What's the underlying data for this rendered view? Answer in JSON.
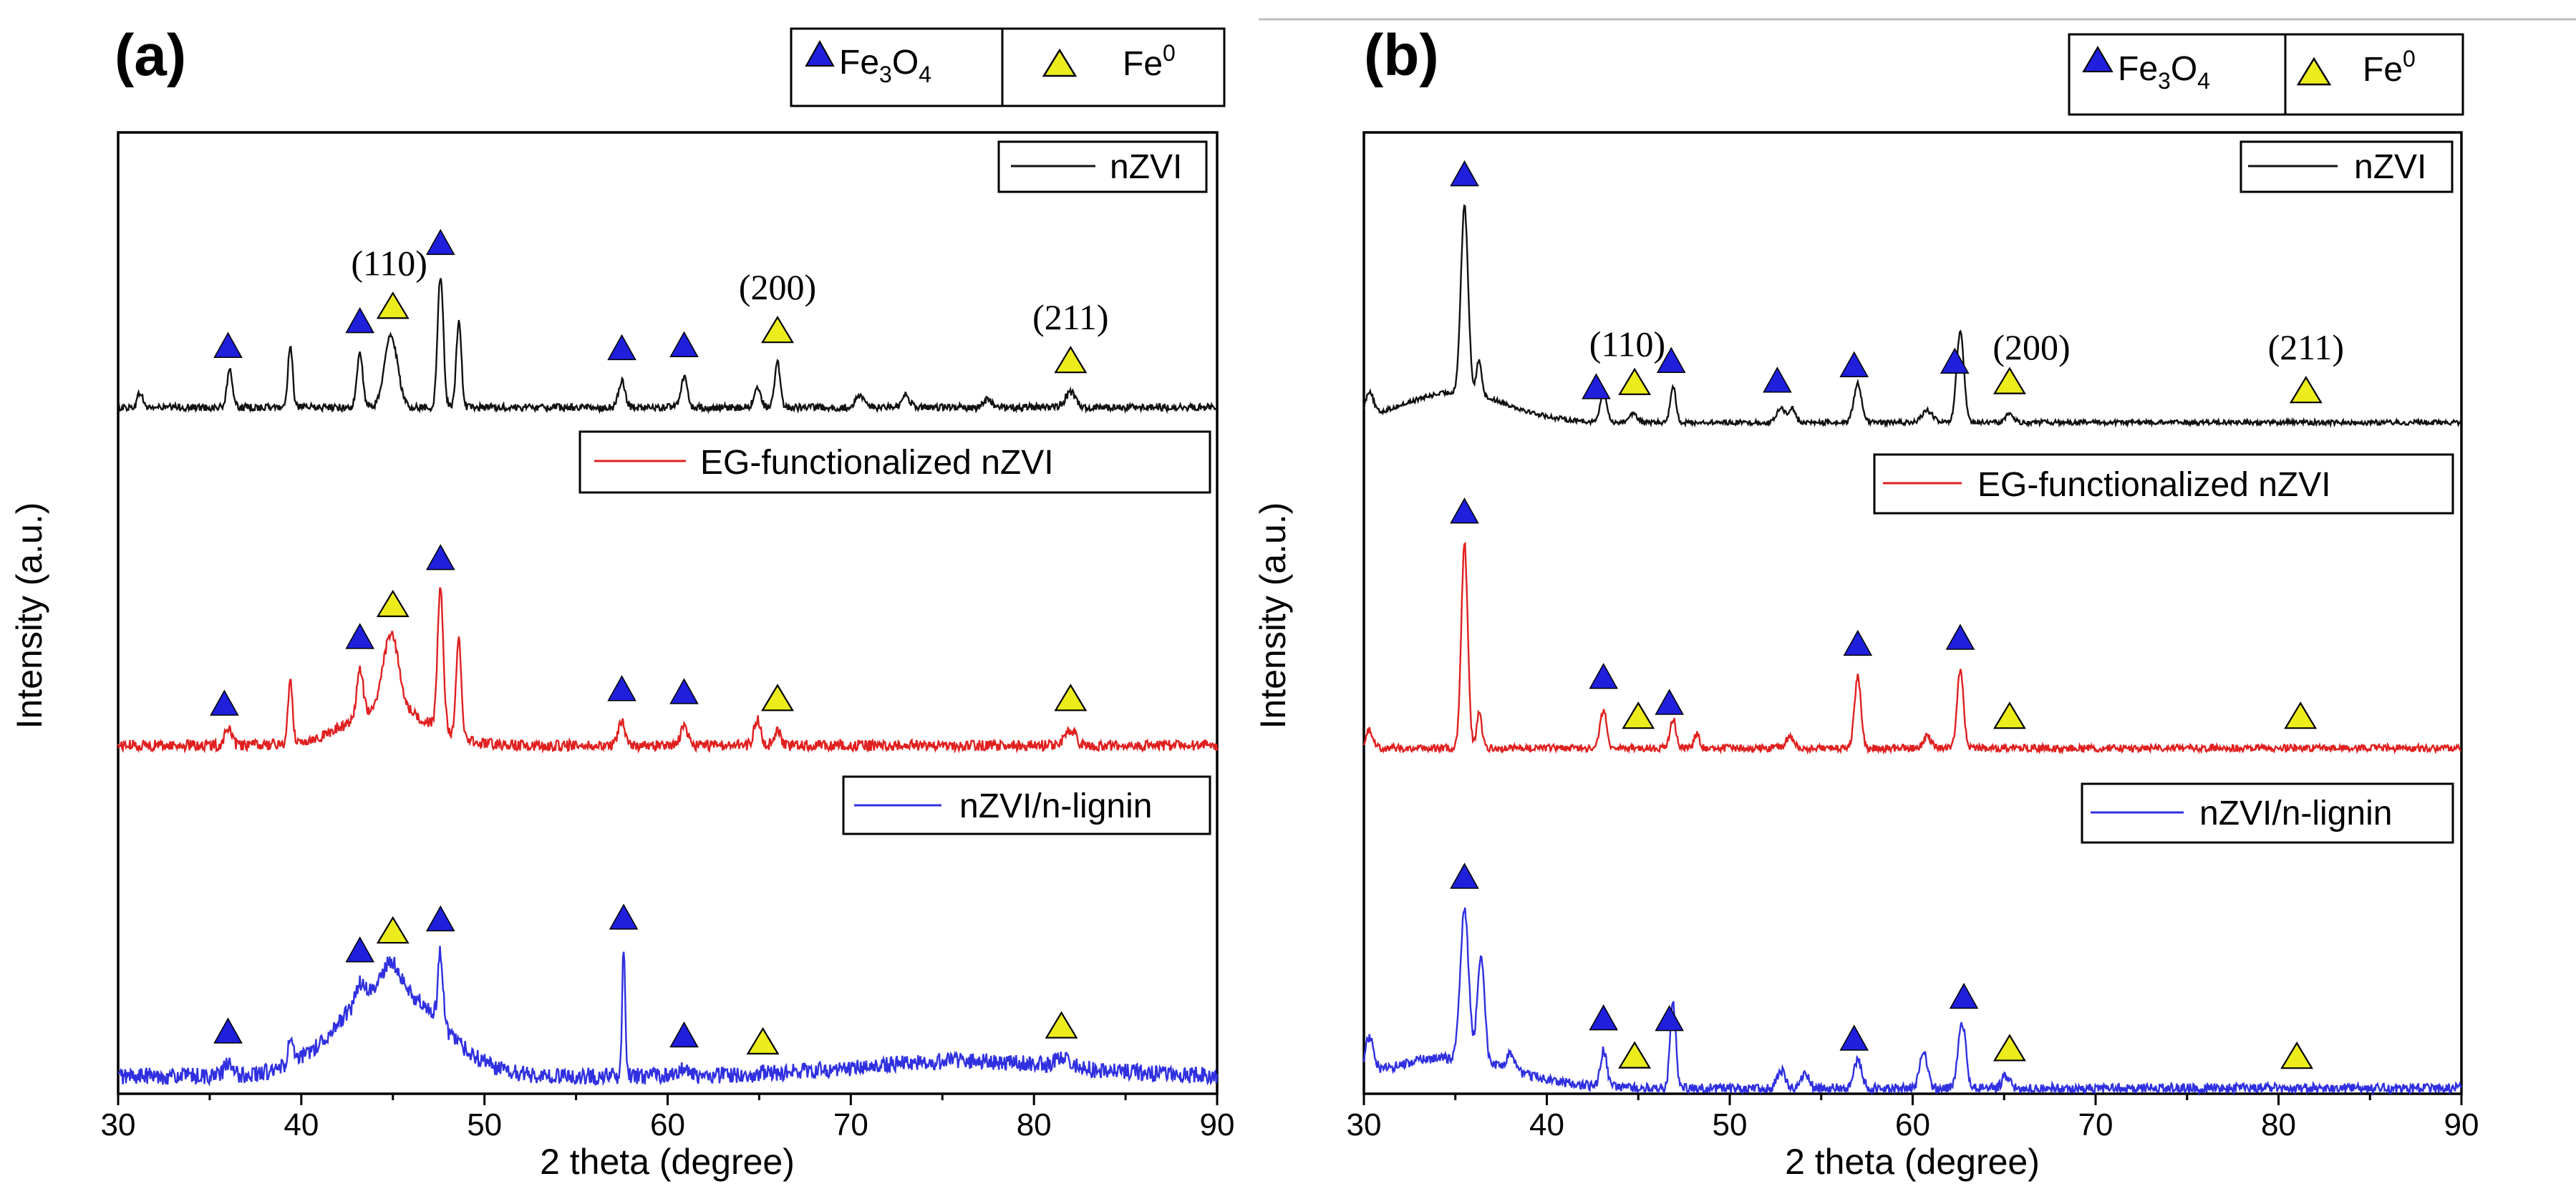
{
  "figure": {
    "marker_labels": {
      "fe3o4": {
        "main": "Fe",
        "sub1": "3",
        "mid": "O",
        "sub2": "4"
      },
      "fe0": {
        "main": "Fe",
        "sup": "0"
      }
    },
    "colors": {
      "fe3o4_marker": "#1f1fdc",
      "fe0_marker": "#ecec1c",
      "nZVI": "#111111",
      "EG-functionalized nZVI": "#e02020",
      "nZVI/n-lignin": "#3030e0"
    }
  },
  "chart_data": [
    {
      "panel_label": "(a)",
      "type": "line",
      "xlabel": "2 theta (degree)",
      "ylabel": "Intensity (a.u.)",
      "xlim": [
        30,
        90
      ],
      "xticks": [
        30,
        40,
        50,
        60,
        70,
        80,
        90
      ],
      "series": [
        {
          "name": "nZVI",
          "baseline": 0.24,
          "noise": 0.012,
          "peaks": [
            {
              "x": 31.2,
              "h": 0.05,
              "w": 0.2
            },
            {
              "x": 36.1,
              "h": 0.12,
              "w": 0.22
            },
            {
              "x": 39.4,
              "h": 0.21,
              "w": 0.18
            },
            {
              "x": 43.2,
              "h": 0.18,
              "w": 0.22
            },
            {
              "x": 44.9,
              "h": 0.24,
              "w": 0.5
            },
            {
              "x": 47.6,
              "h": 0.44,
              "w": 0.22
            },
            {
              "x": 48.6,
              "h": 0.28,
              "w": 0.2
            },
            {
              "x": 57.5,
              "h": 0.09,
              "w": 0.25
            },
            {
              "x": 60.9,
              "h": 0.1,
              "w": 0.25
            },
            {
              "x": 64.9,
              "h": 0.07,
              "w": 0.25
            },
            {
              "x": 66.0,
              "h": 0.15,
              "w": 0.22
            },
            {
              "x": 70.5,
              "h": 0.04,
              "w": 0.3
            },
            {
              "x": 73.0,
              "h": 0.04,
              "w": 0.3
            },
            {
              "x": 77.5,
              "h": 0.03,
              "w": 0.3
            },
            {
              "x": 82.0,
              "h": 0.05,
              "w": 0.4
            }
          ],
          "humps": []
        },
        {
          "name": "EG-functionalized nZVI",
          "baseline": 0.235,
          "noise": 0.018,
          "peaks": [
            {
              "x": 36.0,
              "h": 0.06,
              "w": 0.25
            },
            {
              "x": 39.4,
              "h": 0.2,
              "w": 0.18
            },
            {
              "x": 43.2,
              "h": 0.16,
              "w": 0.25
            },
            {
              "x": 44.9,
              "h": 0.25,
              "w": 0.6
            },
            {
              "x": 47.6,
              "h": 0.46,
              "w": 0.22
            },
            {
              "x": 48.6,
              "h": 0.32,
              "w": 0.2
            },
            {
              "x": 57.5,
              "h": 0.08,
              "w": 0.25
            },
            {
              "x": 60.9,
              "h": 0.07,
              "w": 0.25
            },
            {
              "x": 64.9,
              "h": 0.09,
              "w": 0.25
            },
            {
              "x": 66.0,
              "h": 0.05,
              "w": 0.25
            },
            {
              "x": 82.0,
              "h": 0.05,
              "w": 0.4
            }
          ],
          "humps": [
            {
              "x": 44.8,
              "h": 0.12,
              "w": 3.2
            }
          ]
        },
        {
          "name": "nZVI/n-lignin",
          "baseline": 0.23,
          "noise": 0.028,
          "peaks": [
            {
              "x": 36.0,
              "h": 0.04,
              "w": 0.3
            },
            {
              "x": 39.4,
              "h": 0.08,
              "w": 0.2
            },
            {
              "x": 43.2,
              "h": 0.06,
              "w": 0.3
            },
            {
              "x": 44.9,
              "h": 0.08,
              "w": 0.6
            },
            {
              "x": 47.6,
              "h": 0.24,
              "w": 0.2
            },
            {
              "x": 57.6,
              "h": 0.42,
              "w": 0.12
            },
            {
              "x": 61.0,
              "h": 0.03,
              "w": 0.3
            },
            {
              "x": 81.5,
              "h": 0.03,
              "w": 0.6
            }
          ],
          "humps": [
            {
              "x": 44.8,
              "h": 0.3,
              "w": 3.8
            },
            {
              "x": 76.0,
              "h": 0.05,
              "w": 8.0
            }
          ]
        }
      ],
      "markers": [
        {
          "series": 0,
          "type": "Fe3O4",
          "x": 36.0
        },
        {
          "series": 0,
          "type": "Fe3O4",
          "x": 43.2
        },
        {
          "series": 0,
          "type": "Fe0",
          "x": 45.0
        },
        {
          "series": 0,
          "type": "Fe3O4",
          "x": 47.6
        },
        {
          "series": 0,
          "type": "Fe3O4",
          "x": 57.5
        },
        {
          "series": 0,
          "type": "Fe3O4",
          "x": 60.9
        },
        {
          "series": 0,
          "type": "Fe0",
          "x": 66.0
        },
        {
          "series": 0,
          "type": "Fe0",
          "x": 82.0
        },
        {
          "series": 1,
          "type": "Fe3O4",
          "x": 35.8
        },
        {
          "series": 1,
          "type": "Fe3O4",
          "x": 43.2
        },
        {
          "series": 1,
          "type": "Fe0",
          "x": 45.0
        },
        {
          "series": 1,
          "type": "Fe3O4",
          "x": 47.6
        },
        {
          "series": 1,
          "type": "Fe3O4",
          "x": 57.5
        },
        {
          "series": 1,
          "type": "Fe3O4",
          "x": 60.9
        },
        {
          "series": 1,
          "type": "Fe0",
          "x": 66.0
        },
        {
          "series": 1,
          "type": "Fe0",
          "x": 82.0
        },
        {
          "series": 2,
          "type": "Fe3O4",
          "x": 36.0
        },
        {
          "series": 2,
          "type": "Fe3O4",
          "x": 43.2
        },
        {
          "series": 2,
          "type": "Fe0",
          "x": 45.0
        },
        {
          "series": 2,
          "type": "Fe3O4",
          "x": 47.6
        },
        {
          "series": 2,
          "type": "Fe3O4",
          "x": 57.6
        },
        {
          "series": 2,
          "type": "Fe3O4",
          "x": 60.9
        },
        {
          "series": 2,
          "type": "Fe0",
          "x": 65.2
        },
        {
          "series": 2,
          "type": "Fe0",
          "x": 81.5
        }
      ],
      "annotations": [
        {
          "text": "(110)",
          "x": 44.8,
          "series": 0
        },
        {
          "text": "(200)",
          "x": 66.0,
          "series": 0
        },
        {
          "text": "(211)",
          "x": 82.0,
          "series": 0
        }
      ]
    },
    {
      "panel_label": "(b)",
      "type": "line",
      "xlabel": "2 theta (degree)",
      "ylabel": "Intensity (a.u.)",
      "xlim": [
        30,
        90
      ],
      "xticks": [
        30,
        40,
        50,
        60,
        70,
        80,
        90
      ],
      "series": [
        {
          "name": "nZVI",
          "baseline": 0.19,
          "noise": 0.008,
          "peaks": [
            {
              "x": 30.3,
              "h": 0.08,
              "w": 0.3
            },
            {
              "x": 35.5,
              "h": 0.62,
              "w": 0.28
            },
            {
              "x": 36.3,
              "h": 0.12,
              "w": 0.2
            },
            {
              "x": 43.1,
              "h": 0.1,
              "w": 0.25
            },
            {
              "x": 44.7,
              "h": 0.03,
              "w": 0.3
            },
            {
              "x": 46.9,
              "h": 0.12,
              "w": 0.22
            },
            {
              "x": 52.8,
              "h": 0.05,
              "w": 0.3
            },
            {
              "x": 53.4,
              "h": 0.05,
              "w": 0.25
            },
            {
              "x": 57.0,
              "h": 0.13,
              "w": 0.3
            },
            {
              "x": 60.8,
              "h": 0.04,
              "w": 0.4
            },
            {
              "x": 62.6,
              "h": 0.3,
              "w": 0.28
            },
            {
              "x": 65.3,
              "h": 0.03,
              "w": 0.3
            }
          ],
          "humps": [
            {
              "x": 35.0,
              "h": 0.1,
              "w": 4.0
            }
          ]
        },
        {
          "name": "EG-functionalized nZVI",
          "baseline": 0.19,
          "noise": 0.012,
          "peaks": [
            {
              "x": 30.3,
              "h": 0.06,
              "w": 0.3
            },
            {
              "x": 35.5,
              "h": 0.68,
              "w": 0.25
            },
            {
              "x": 36.3,
              "h": 0.12,
              "w": 0.2
            },
            {
              "x": 43.1,
              "h": 0.13,
              "w": 0.25
            },
            {
              "x": 46.9,
              "h": 0.1,
              "w": 0.22
            },
            {
              "x": 48.2,
              "h": 0.05,
              "w": 0.2
            },
            {
              "x": 53.3,
              "h": 0.04,
              "w": 0.3
            },
            {
              "x": 57.0,
              "h": 0.24,
              "w": 0.25
            },
            {
              "x": 60.8,
              "h": 0.04,
              "w": 0.3
            },
            {
              "x": 62.6,
              "h": 0.26,
              "w": 0.25
            }
          ],
          "humps": []
        },
        {
          "name": "nZVI/n-lignin",
          "baseline": 0.19,
          "noise": 0.016,
          "peaks": [
            {
              "x": 30.3,
              "h": 0.12,
              "w": 0.35
            },
            {
              "x": 35.5,
              "h": 0.5,
              "w": 0.32
            },
            {
              "x": 36.4,
              "h": 0.36,
              "w": 0.28
            },
            {
              "x": 38.0,
              "h": 0.05,
              "w": 0.3
            },
            {
              "x": 43.1,
              "h": 0.12,
              "w": 0.25
            },
            {
              "x": 46.9,
              "h": 0.28,
              "w": 0.22
            },
            {
              "x": 52.8,
              "h": 0.06,
              "w": 0.3
            },
            {
              "x": 54.1,
              "h": 0.05,
              "w": 0.3
            },
            {
              "x": 57.0,
              "h": 0.09,
              "w": 0.3
            },
            {
              "x": 60.6,
              "h": 0.12,
              "w": 0.3
            },
            {
              "x": 62.7,
              "h": 0.22,
              "w": 0.3
            },
            {
              "x": 65.1,
              "h": 0.04,
              "w": 0.3
            }
          ],
          "humps": [
            {
              "x": 34.5,
              "h": 0.1,
              "w": 5.0
            }
          ]
        }
      ],
      "markers": [
        {
          "series": 0,
          "type": "Fe3O4",
          "x": 35.5
        },
        {
          "series": 0,
          "type": "Fe3O4",
          "x": 42.7
        },
        {
          "series": 0,
          "type": "Fe0",
          "x": 44.8
        },
        {
          "series": 0,
          "type": "Fe3O4",
          "x": 46.8
        },
        {
          "series": 0,
          "type": "Fe3O4",
          "x": 52.6
        },
        {
          "series": 0,
          "type": "Fe3O4",
          "x": 56.8
        },
        {
          "series": 0,
          "type": "Fe3O4",
          "x": 62.3
        },
        {
          "series": 0,
          "type": "Fe0",
          "x": 65.3
        },
        {
          "series": 0,
          "type": "Fe0",
          "x": 81.5
        },
        {
          "series": 1,
          "type": "Fe3O4",
          "x": 35.5
        },
        {
          "series": 1,
          "type": "Fe3O4",
          "x": 43.1
        },
        {
          "series": 1,
          "type": "Fe0",
          "x": 45.0
        },
        {
          "series": 1,
          "type": "Fe3O4",
          "x": 46.7
        },
        {
          "series": 1,
          "type": "Fe3O4",
          "x": 57.0
        },
        {
          "series": 1,
          "type": "Fe3O4",
          "x": 62.6
        },
        {
          "series": 1,
          "type": "Fe0",
          "x": 65.3
        },
        {
          "series": 1,
          "type": "Fe0",
          "x": 81.2
        },
        {
          "series": 2,
          "type": "Fe3O4",
          "x": 35.5
        },
        {
          "series": 2,
          "type": "Fe3O4",
          "x": 43.1
        },
        {
          "series": 2,
          "type": "Fe0",
          "x": 44.8
        },
        {
          "series": 2,
          "type": "Fe3O4",
          "x": 46.7
        },
        {
          "series": 2,
          "type": "Fe3O4",
          "x": 56.8
        },
        {
          "series": 2,
          "type": "Fe3O4",
          "x": 62.8
        },
        {
          "series": 2,
          "type": "Fe0",
          "x": 65.3
        },
        {
          "series": 2,
          "type": "Fe0",
          "x": 81.0
        }
      ],
      "annotations": [
        {
          "text": "(110)",
          "x": 44.4,
          "series": 0
        },
        {
          "text": "(200)",
          "x": 66.5,
          "series": 0
        },
        {
          "text": "(211)",
          "x": 81.5,
          "series": 0
        }
      ]
    }
  ]
}
